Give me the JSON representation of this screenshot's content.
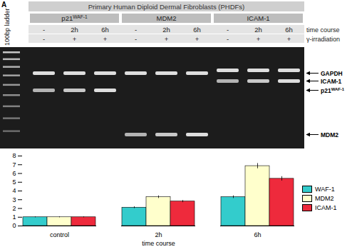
{
  "chart_data": {
    "type": "bar",
    "x_label": "time course",
    "categories": [
      "control",
      "2h",
      "6h"
    ],
    "series": [
      {
        "name": "WAF-1",
        "color": "#33cccc",
        "values": [
          1.0,
          2.1,
          3.3
        ],
        "errors": [
          0.05,
          0.1,
          0.15
        ]
      },
      {
        "name": "MDM2",
        "color": "#ffffcc",
        "values": [
          1.0,
          3.3,
          6.85
        ],
        "errors": [
          0.05,
          0.15,
          0.3
        ]
      },
      {
        "name": "ICAM-1",
        "color": "#ee2a3c",
        "values": [
          1.0,
          2.8,
          5.4
        ],
        "errors": [
          0.05,
          0.12,
          0.25
        ]
      }
    ],
    "ylim": [
      0,
      8
    ],
    "yticks": [
      0,
      1,
      2,
      3,
      4,
      5,
      6,
      7,
      8
    ],
    "grid": false,
    "legend": "right"
  },
  "gel": {
    "panel_label": "A",
    "ladder": "100bp ladder",
    "title": "Primary Human Diploid Dermal Fibroblasts (PHDFs)",
    "bands": [
      {
        "label": {
          "base": "GAPDH"
        }
      },
      {
        "label": {
          "base": "ICAM-1"
        }
      },
      {
        "label": {
          "base": "p21",
          "sup": "WAF-1"
        }
      },
      {
        "label": {
          "base": "MDM2"
        }
      }
    ],
    "groups": [
      {
        "label": {
          "base": "p21",
          "sup": "WAF-1"
        },
        "band": 2
      },
      {
        "label": {
          "base": "MDM2"
        },
        "band": 3
      },
      {
        "label": {
          "base": "ICAM-1"
        },
        "band": 1
      }
    ],
    "rows": [
      {
        "label": "time course",
        "values": [
          "-",
          "2h",
          "6h"
        ]
      },
      {
        "label": "γ-irradiation",
        "values": [
          "-",
          "+",
          "+"
        ]
      }
    ]
  }
}
